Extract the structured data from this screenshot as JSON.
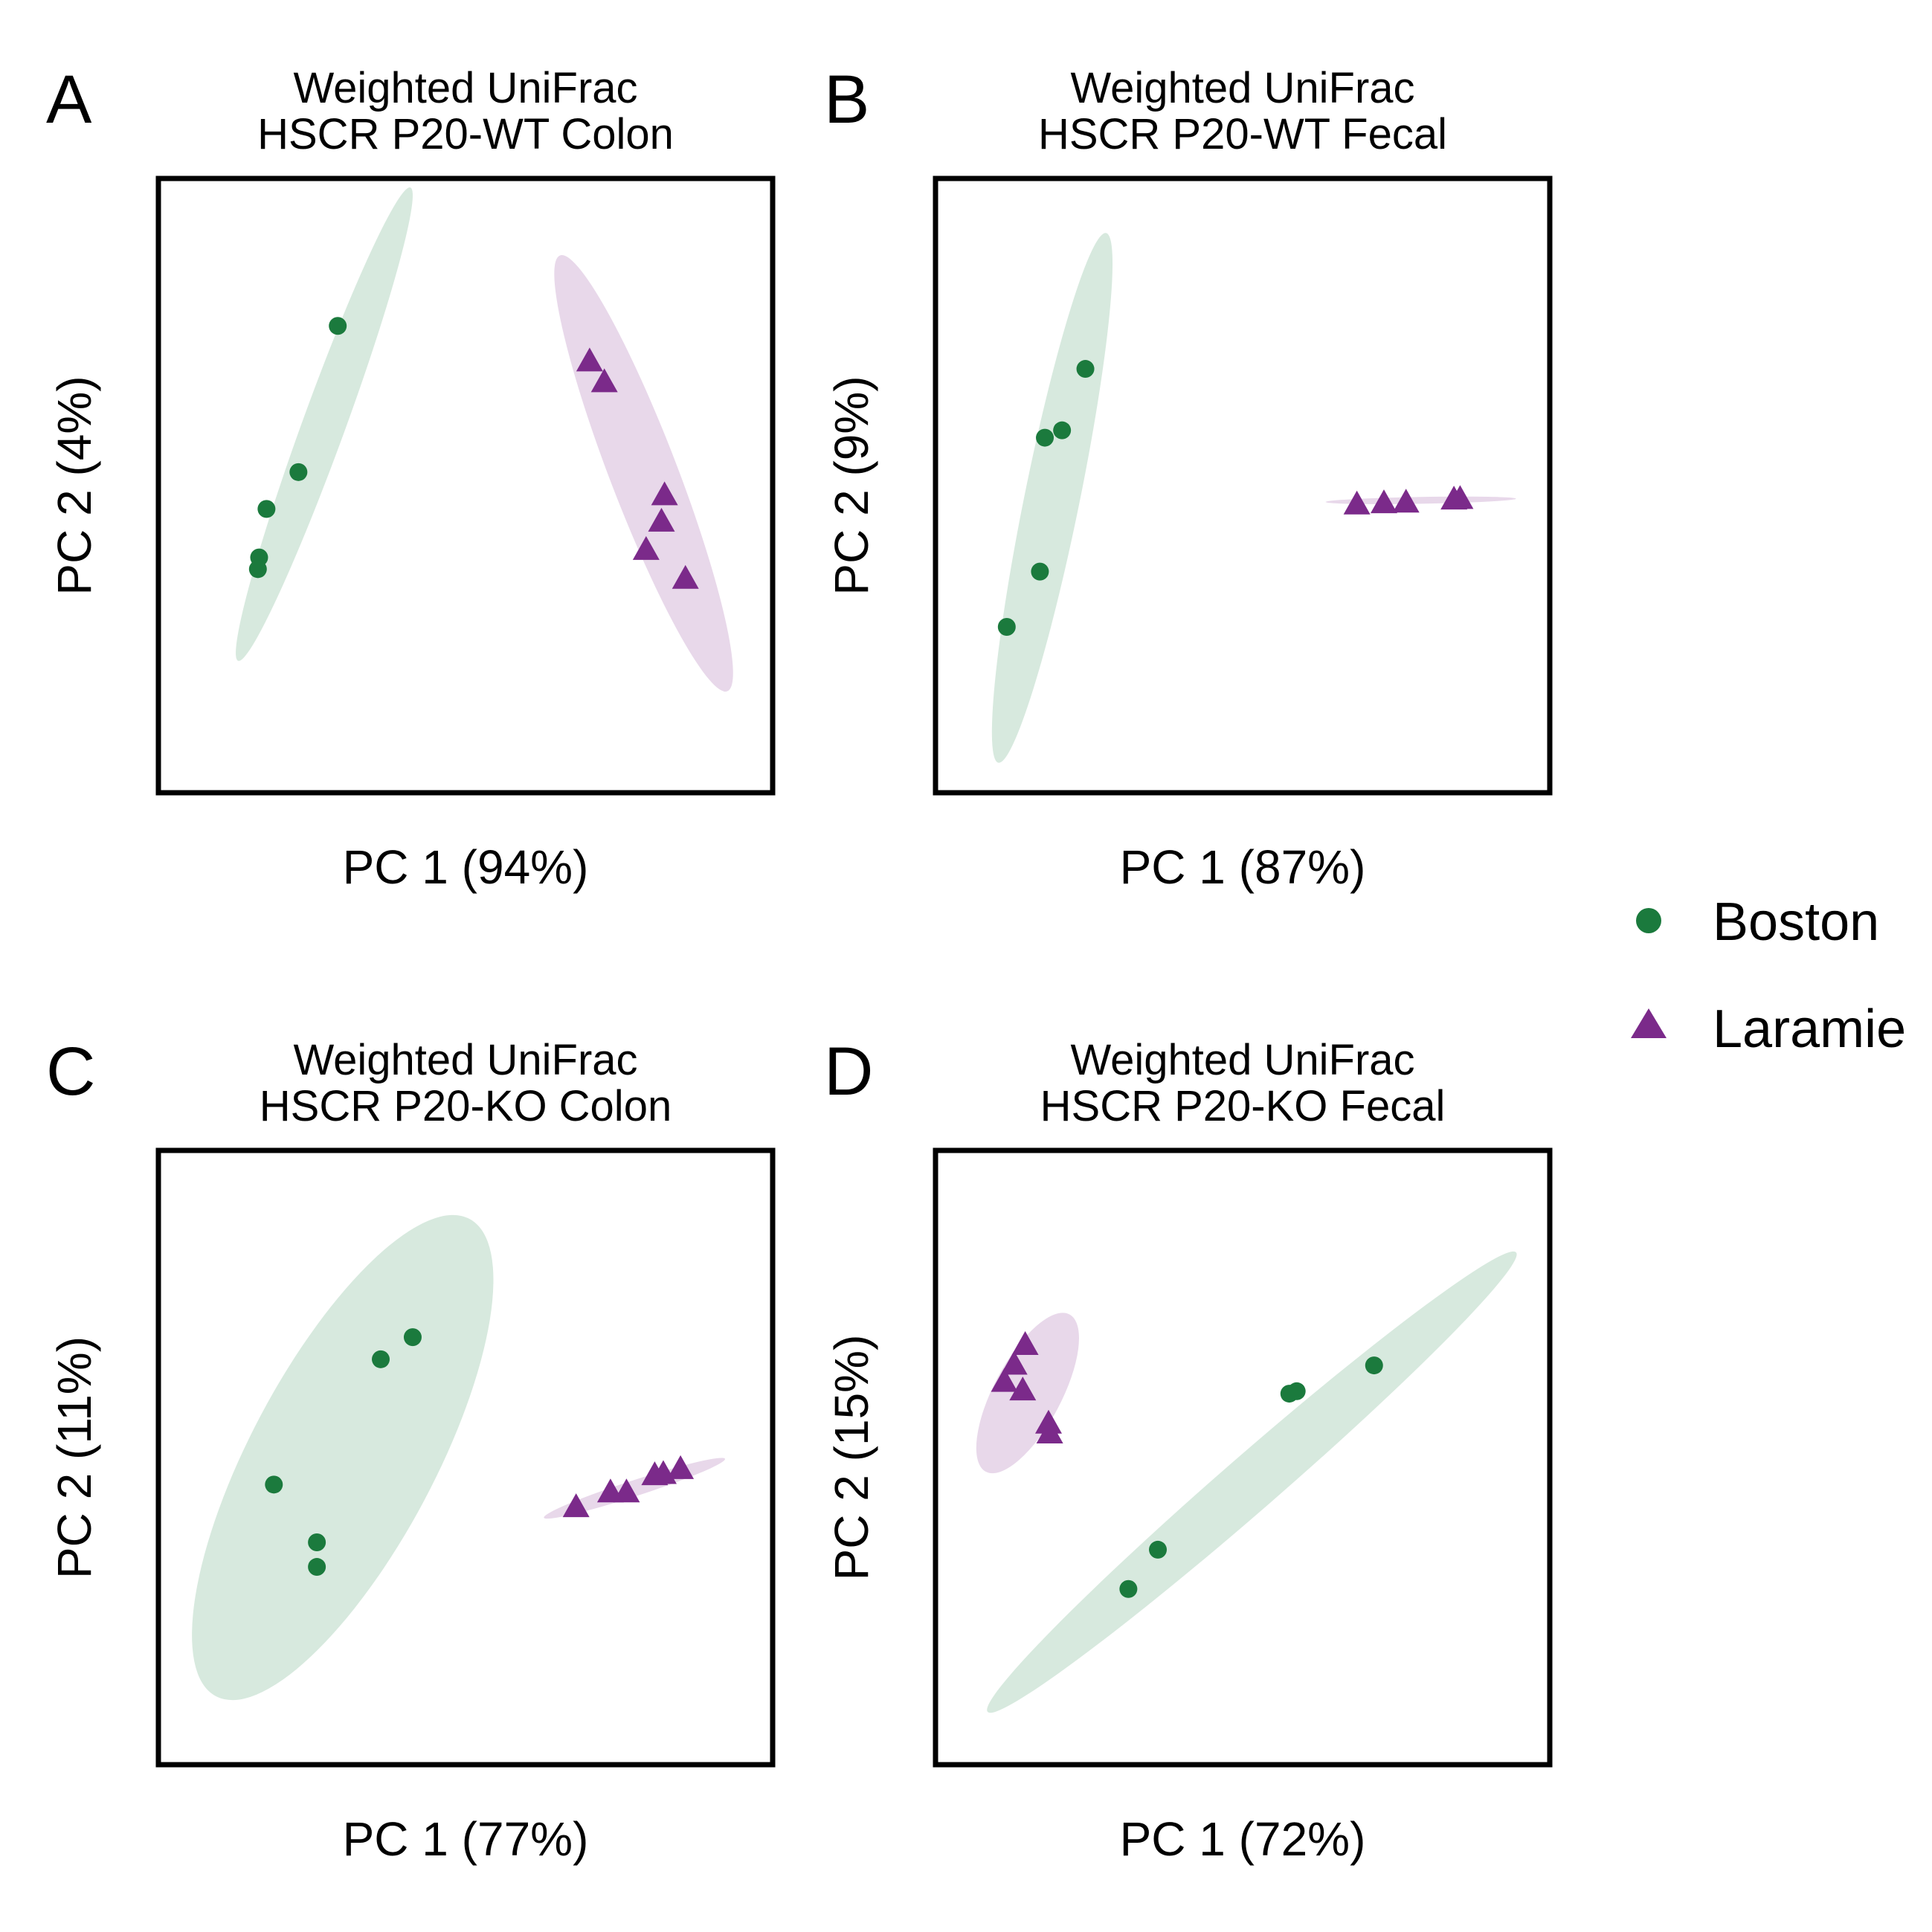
{
  "colors": {
    "Boston": "#1b7a3d",
    "Boston_ellipse": "#d7e9de",
    "Laramie": "#7b2a8a",
    "Laramie_ellipse": "#e8d8ea",
    "frame": "#000000"
  },
  "legend": {
    "placement": "right",
    "items": [
      {
        "label": "Boston",
        "marker": "circle",
        "color_key": "Boston"
      },
      {
        "label": "Laramie",
        "marker": "triangle",
        "color_key": "Laramie"
      }
    ]
  },
  "chart_data": [
    {
      "type": "scatter",
      "panel": "A",
      "title": "Weighted UniFrac\nHSCR P20-WT Colon",
      "title_lines": [
        "Weighted UniFrac",
        "HSCR P20-WT Colon"
      ],
      "xlabel": "PC 1 (94%)",
      "ylabel": "PC 2 (4%)",
      "xlim": [
        0,
        100
      ],
      "ylim": [
        0,
        100
      ],
      "ticks": false,
      "grid": false,
      "series": [
        {
          "name": "Boston",
          "marker": "circle",
          "points": [
            [
              29.2,
              76.0
            ],
            [
              22.8,
              52.2
            ],
            [
              17.6,
              46.2
            ],
            [
              16.4,
              38.3
            ],
            [
              16.2,
              36.4
            ]
          ],
          "ellipse": {
            "cx": 27.0,
            "cy": 60.0,
            "rx": 41.0,
            "ry": 3.5,
            "angle": 70.0
          }
        },
        {
          "name": "Laramie",
          "marker": "triangle",
          "points": [
            [
              70.2,
              70.3
            ],
            [
              72.6,
              66.9
            ],
            [
              82.4,
              48.5
            ],
            [
              81.9,
              44.2
            ],
            [
              79.4,
              39.6
            ],
            [
              85.8,
              34.9
            ]
          ],
          "ellipse": {
            "cx": 79.0,
            "cy": 52.0,
            "rx": 38.0,
            "ry": 5.5,
            "angle": -69.0
          }
        }
      ]
    },
    {
      "type": "scatter",
      "panel": "B",
      "title": "Weighted UniFrac\nHSCR P20-WT Fecal",
      "title_lines": [
        "Weighted UniFrac",
        "HSCR P20-WT Fecal"
      ],
      "xlabel": "PC 1 (87%)",
      "ylabel": "PC 2 (9%)",
      "xlim": [
        0,
        100
      ],
      "ylim": [
        0,
        100
      ],
      "ticks": false,
      "grid": false,
      "series": [
        {
          "name": "Boston",
          "marker": "circle",
          "points": [
            [
              24.4,
              69.0
            ],
            [
              20.6,
              59.0
            ],
            [
              17.8,
              57.8
            ],
            [
              17.0,
              36.0
            ],
            [
              11.6,
              27.0
            ]
          ],
          "ellipse": {
            "cx": 19.0,
            "cy": 48.0,
            "rx": 44.0,
            "ry": 4.5,
            "angle": 78.5
          }
        },
        {
          "name": "Laramie",
          "marker": "triangle",
          "points": [
            [
              68.6,
              47.0
            ],
            [
              73.0,
              47.2
            ],
            [
              76.6,
              47.3
            ],
            [
              84.4,
              47.8
            ],
            [
              85.4,
              47.9
            ]
          ],
          "ellipse": {
            "cx": 79.0,
            "cy": 47.6,
            "rx": 15.5,
            "ry": 0.55,
            "angle": 1.0
          }
        }
      ]
    },
    {
      "type": "scatter",
      "panel": "C",
      "title": "Weighted UniFrac\nHSCR P20-KO Colon",
      "title_lines": [
        "Weighted UniFrac",
        "HSCR P20-KO Colon"
      ],
      "xlabel": "PC 1 (77%)",
      "ylabel": "PC 2 (11%)",
      "xlim": [
        0,
        100
      ],
      "ylim": [
        0,
        100
      ],
      "ticks": false,
      "grid": false,
      "series": [
        {
          "name": "Boston",
          "marker": "circle",
          "points": [
            [
              41.4,
              69.6
            ],
            [
              36.2,
              66.0
            ],
            [
              18.8,
              45.6
            ],
            [
              25.8,
              36.2
            ],
            [
              25.8,
              32.2
            ]
          ],
          "ellipse": {
            "cx": 30.0,
            "cy": 50.0,
            "rx": 44.0,
            "ry": 15.0,
            "angle": 62.0
          }
        },
        {
          "name": "Laramie",
          "marker": "triangle",
          "points": [
            [
              68.0,
              42.0
            ],
            [
              73.6,
              44.4
            ],
            [
              76.2,
              44.4
            ],
            [
              80.8,
              47.2
            ],
            [
              82.2,
              47.4
            ],
            [
              85.0,
              48.2
            ]
          ],
          "ellipse": {
            "cx": 77.5,
            "cy": 45.0,
            "rx": 15.5,
            "ry": 1.3,
            "angle": 18.0
          }
        }
      ]
    },
    {
      "type": "scatter",
      "panel": "D",
      "title": "Weighted UniFrac\nHSCR P20-KO Fecal",
      "title_lines": [
        "Weighted UniFrac",
        "HSCR P20-KO Fecal"
      ],
      "xlabel": "PC 1 (72%)",
      "ylabel": "PC 2 (15%)",
      "xlim": [
        0,
        100
      ],
      "ylim": [
        0,
        100
      ],
      "ticks": false,
      "grid": false,
      "series": [
        {
          "name": "Boston",
          "marker": "circle",
          "points": [
            [
              71.4,
              65.0
            ],
            [
              58.8,
              60.8
            ],
            [
              57.6,
              60.4
            ],
            [
              36.2,
              35.0
            ],
            [
              31.4,
              28.6
            ]
          ],
          "ellipse": {
            "cx": 51.5,
            "cy": 46.0,
            "rx": 57.0,
            "ry": 4.5,
            "angle": 41.0
          }
        },
        {
          "name": "Laramie",
          "marker": "triangle",
          "points": [
            [
              14.6,
              68.4
            ],
            [
              12.8,
              65.2
            ],
            [
              11.2,
              62.4
            ],
            [
              14.2,
              61.0
            ],
            [
              18.4,
              55.6
            ],
            [
              18.6,
              54.0
            ]
          ],
          "ellipse": {
            "cx": 15.0,
            "cy": 60.5,
            "rx": 14.5,
            "ry": 5.5,
            "angle": 62.0
          }
        }
      ]
    }
  ]
}
